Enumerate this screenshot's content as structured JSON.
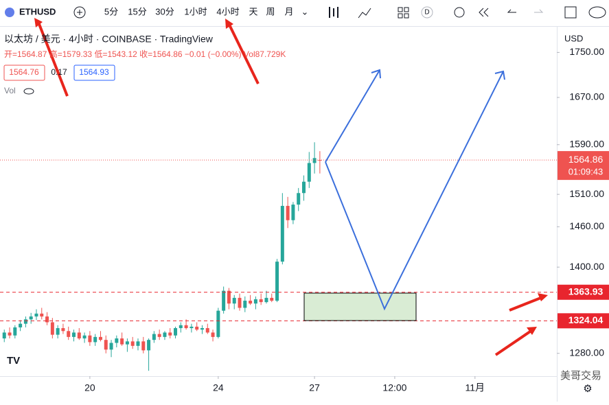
{
  "toolbar": {
    "symbol": "ETHUSD",
    "intervals": [
      "5分",
      "15分",
      "30分",
      "1小时",
      "4小时",
      "天",
      "周",
      "月"
    ],
    "badge": "D"
  },
  "legend": {
    "title": "以太坊 / 美元 · 4小时 · COINBASE · TradingView",
    "ohlc": "开=1564.87 高=1579.33 低=1543.12 收=1564.86 −0.01 (−0.00%) Vol87.729K",
    "bid": "1564.76",
    "spread": "0.17",
    "ask": "1564.93",
    "vol": "Vol"
  },
  "currency": "USD",
  "countdown": "01:09:43",
  "watermark": "美哥交易",
  "chart_data": {
    "type": "candlestick",
    "log_scale": true,
    "up_color": "#26a69a",
    "down_color": "#ef5350",
    "xlim": [
      -0.8,
      103.3
    ],
    "xticks": [
      {
        "value": 16,
        "label": "20"
      },
      {
        "value": 40,
        "label": "24"
      },
      {
        "value": 58,
        "label": "27"
      },
      {
        "value": 73,
        "label": "12:00"
      },
      {
        "value": 88,
        "label": "11月"
      }
    ],
    "ylim": [
      1250,
      1796
    ],
    "yticks": [
      1280,
      1400,
      1460,
      1510,
      1590,
      1670,
      1750
    ],
    "ytick_labels": [
      "1280.00",
      "1400.00",
      "1460.00",
      "1510.00",
      "1590.00",
      "1670.00",
      "1750.00"
    ],
    "levels": [
      1363.93,
      1324.04
    ],
    "open": [
      1300,
      1308,
      1304,
      1315,
      1320,
      1326,
      1330,
      1334,
      1330,
      1322,
      1305,
      1314,
      1310,
      1302,
      1308,
      1300,
      1304,
      1295,
      1302,
      1298,
      1285,
      1294,
      1300,
      1292,
      1296,
      1290,
      1296,
      1284,
      1298,
      1306,
      1302,
      1308,
      1304,
      1314,
      1318,
      1314,
      1316,
      1312,
      1314,
      1308,
      1302,
      1338,
      1366,
      1348,
      1356,
      1342,
      1352,
      1348,
      1354,
      1350,
      1356,
      1352,
      1408,
      1492,
      1470,
      1494,
      1512,
      1530,
      1560,
      1564.87
    ],
    "high": [
      1312,
      1315,
      1318,
      1325,
      1330,
      1335,
      1340,
      1342,
      1336,
      1328,
      1318,
      1320,
      1316,
      1312,
      1314,
      1308,
      1310,
      1306,
      1310,
      1304,
      1298,
      1304,
      1308,
      1300,
      1302,
      1300,
      1302,
      1300,
      1310,
      1312,
      1310,
      1314,
      1316,
      1322,
      1326,
      1320,
      1322,
      1318,
      1320,
      1312,
      1342,
      1372,
      1370,
      1360,
      1362,
      1358,
      1360,
      1358,
      1362,
      1366,
      1362,
      1412,
      1512,
      1506,
      1498,
      1520,
      1540,
      1578,
      1594,
      1579.33
    ],
    "low": [
      1295,
      1300,
      1300,
      1310,
      1315,
      1320,
      1325,
      1326,
      1318,
      1300,
      1300,
      1306,
      1298,
      1296,
      1298,
      1294,
      1290,
      1290,
      1296,
      1280,
      1275,
      1288,
      1290,
      1282,
      1286,
      1284,
      1280,
      1257,
      1294,
      1298,
      1298,
      1300,
      1300,
      1308,
      1312,
      1308,
      1310,
      1306,
      1306,
      1296,
      1300,
      1334,
      1340,
      1340,
      1338,
      1336,
      1346,
      1340,
      1346,
      1348,
      1350,
      1350,
      1404,
      1458,
      1464,
      1484,
      1500,
      1520,
      1543,
      1543.12
    ],
    "close": [
      1308,
      1304,
      1315,
      1320,
      1326,
      1330,
      1334,
      1330,
      1322,
      1305,
      1314,
      1310,
      1302,
      1308,
      1300,
      1304,
      1295,
      1302,
      1298,
      1285,
      1294,
      1300,
      1292,
      1296,
      1290,
      1296,
      1284,
      1298,
      1306,
      1302,
      1308,
      1304,
      1314,
      1318,
      1314,
      1316,
      1312,
      1314,
      1308,
      1302,
      1338,
      1366,
      1348,
      1356,
      1342,
      1352,
      1348,
      1354,
      1350,
      1356,
      1352,
      1408,
      1492,
      1470,
      1494,
      1512,
      1530,
      1560,
      1568,
      1564.86
    ]
  }
}
